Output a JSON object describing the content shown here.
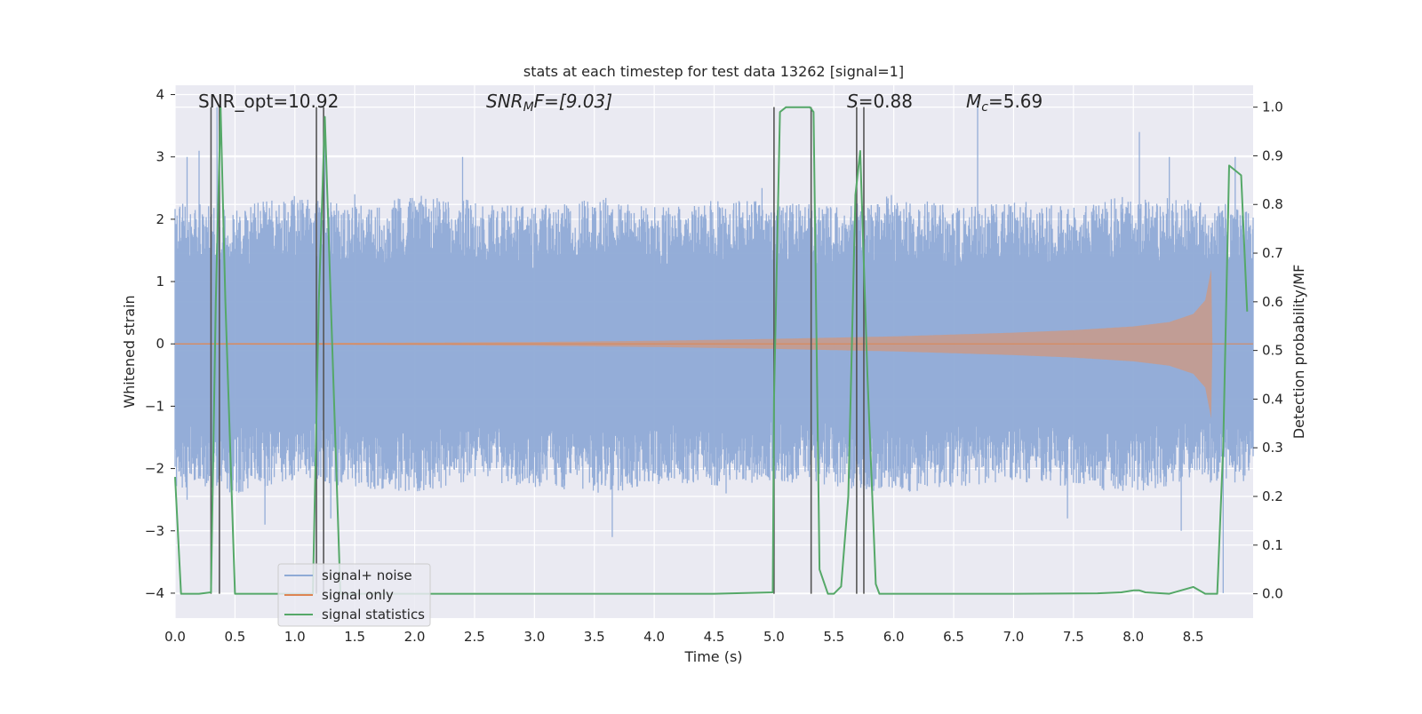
{
  "chart_data": {
    "type": "line",
    "title": "stats at each timestep for test data 13262 [signal=1]",
    "xlabel": "Time (s)",
    "ylabel_left": "Whitened strain",
    "ylabel_right": "Detection probability/MF",
    "xlim": [
      0.0,
      9.0
    ],
    "ylim_left": [
      -4.4,
      4.15
    ],
    "ylim_right": [
      -0.05,
      1.045
    ],
    "x_ticks": [
      "0.0",
      "0.5",
      "1.0",
      "1.5",
      "2.0",
      "2.5",
      "3.0",
      "3.5",
      "4.0",
      "4.5",
      "5.0",
      "5.5",
      "6.0",
      "6.5",
      "7.0",
      "7.5",
      "8.0",
      "8.5"
    ],
    "y_ticks_left": [
      "4",
      "3",
      "2",
      "1",
      "0",
      "−1",
      "−2",
      "−3",
      "−4"
    ],
    "y_ticks_right": [
      "1.0",
      "0.9",
      "0.8",
      "0.7",
      "0.6",
      "0.5",
      "0.4",
      "0.3",
      "0.2",
      "0.1",
      "0.0"
    ],
    "right_grid_values": [
      0.0,
      0.1,
      0.2,
      0.3,
      0.4,
      0.5,
      0.6,
      0.7,
      0.8,
      0.9,
      1.0
    ],
    "grid": true,
    "legend_position": "lower-left",
    "legend": [
      "signal+ noise",
      "signal only",
      "signal statistics"
    ],
    "annotations": {
      "snr_opt": "SNR_opt=10.92",
      "snr_mf_main": "SNR",
      "snr_mf_sub": "M",
      "snr_mf_rest": "F=[9.03]",
      "s_main": "S",
      "s_rest": "=0.88",
      "mc_main": "M",
      "mc_sub": "c",
      "mc_rest": "=5.69"
    },
    "colors": {
      "signal_noise": "#8faad6",
      "signal_only": "#dd8452",
      "signal_statistics": "#55a868",
      "vlines": "#555555",
      "background": "#eaeaf2",
      "grid": "#ffffff"
    },
    "noise_envelope": {
      "x": [
        0.0,
        0.5,
        1.0,
        1.5,
        2.0,
        2.5,
        3.0,
        3.5,
        4.0,
        4.5,
        5.0,
        5.5,
        6.0,
        6.5,
        7.0,
        7.5,
        8.0,
        8.5,
        9.0
      ],
      "upper": [
        2.3,
        2.2,
        2.4,
        2.2,
        2.4,
        2.3,
        2.2,
        2.4,
        2.2,
        2.3,
        2.3,
        2.2,
        2.4,
        2.2,
        2.3,
        2.2,
        2.4,
        2.3,
        2.2
      ],
      "lower": [
        -2.3,
        -2.4,
        -2.2,
        -2.3,
        -2.4,
        -2.2,
        -2.3,
        -2.4,
        -2.3,
        -2.3,
        -2.2,
        -2.3,
        -2.4,
        -2.3,
        -2.2,
        -2.3,
        -2.4,
        -2.2,
        -2.3
      ],
      "spikes_up": [
        [
          0.1,
          3.0
        ],
        [
          0.2,
          3.1
        ],
        [
          0.35,
          3.8
        ],
        [
          1.25,
          3.6
        ],
        [
          1.5,
          2.4
        ],
        [
          2.4,
          3.0
        ],
        [
          4.9,
          2.5
        ],
        [
          6.7,
          3.9
        ],
        [
          8.05,
          3.4
        ],
        [
          8.3,
          3.0
        ],
        [
          8.85,
          3.0
        ]
      ],
      "spikes_down": [
        [
          0.1,
          -2.5
        ],
        [
          0.75,
          -2.9
        ],
        [
          1.3,
          -2.8
        ],
        [
          3.65,
          -3.1
        ],
        [
          4.6,
          -2.4
        ],
        [
          5.0,
          -3.4
        ],
        [
          7.45,
          -2.8
        ],
        [
          8.4,
          -3.0
        ],
        [
          8.75,
          -4.0
        ]
      ]
    },
    "signal_only": {
      "amplitude_x": [
        0.0,
        1.0,
        2.0,
        3.0,
        4.0,
        5.0,
        6.0,
        7.0,
        7.5,
        8.0,
        8.3,
        8.5,
        8.6,
        8.65,
        8.66,
        9.0
      ],
      "amplitude": [
        0.01,
        0.015,
        0.02,
        0.03,
        0.05,
        0.08,
        0.12,
        0.18,
        0.22,
        0.28,
        0.35,
        0.48,
        0.7,
        1.2,
        0.0,
        0.0
      ]
    },
    "signal_statistics": {
      "x": [
        0.0,
        0.05,
        0.1,
        0.2,
        0.3,
        0.34,
        0.38,
        0.42,
        0.5,
        1.0,
        1.15,
        1.2,
        1.25,
        1.3,
        1.38,
        2.0,
        3.0,
        4.0,
        4.5,
        4.99,
        5.0,
        5.05,
        5.1,
        5.3,
        5.33,
        5.38,
        5.45,
        5.5,
        5.56,
        5.62,
        5.68,
        5.72,
        5.78,
        5.85,
        5.88,
        5.92,
        6.0,
        7.0,
        7.7,
        7.9,
        8.0,
        8.05,
        8.1,
        8.3,
        8.5,
        8.6,
        8.65,
        8.7,
        8.75,
        8.8,
        8.85,
        8.9,
        8.95
      ],
      "y": [
        0.24,
        0.0,
        0.0,
        0.0,
        0.003,
        0.6,
        1.0,
        0.6,
        0.0,
        0.0,
        0.0,
        0.6,
        0.98,
        0.6,
        0.0,
        0.0,
        0.0,
        0.0,
        0.0,
        0.003,
        0.4,
        0.99,
        1.0,
        1.0,
        0.99,
        0.05,
        0.0,
        0.0,
        0.015,
        0.2,
        0.82,
        0.91,
        0.45,
        0.02,
        0.0,
        0.0,
        0.0,
        0.0,
        0.001,
        0.003,
        0.007,
        0.007,
        0.003,
        0.0,
        0.014,
        0.0,
        0.0,
        0.0,
        0.3,
        0.88,
        0.87,
        0.86,
        0.58
      ]
    },
    "vlines": [
      {
        "x": 0.3,
        "ymin": 0.0,
        "ymax": 1.0
      },
      {
        "x": 0.37,
        "ymin": 0.0,
        "ymax": 1.0
      },
      {
        "x": 1.18,
        "ymin": 0.0,
        "ymax": 1.0
      },
      {
        "x": 1.24,
        "ymin": 0.0,
        "ymax": 1.0
      },
      {
        "x": 5.0,
        "ymin": 0.0,
        "ymax": 1.0
      },
      {
        "x": 5.31,
        "ymin": 0.0,
        "ymax": 1.0
      },
      {
        "x": 5.69,
        "ymin": 0.0,
        "ymax": 1.0
      },
      {
        "x": 5.75,
        "ymin": 0.0,
        "ymax": 1.0
      }
    ]
  }
}
